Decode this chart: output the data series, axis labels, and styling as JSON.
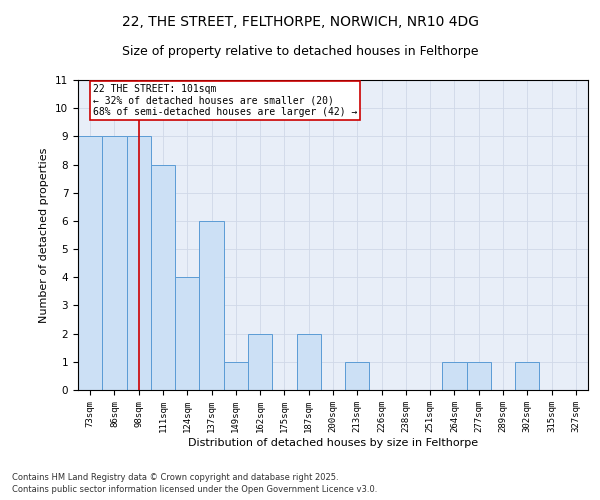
{
  "title": "22, THE STREET, FELTHORPE, NORWICH, NR10 4DG",
  "subtitle": "Size of property relative to detached houses in Felthorpe",
  "xlabel": "Distribution of detached houses by size in Felthorpe",
  "ylabel": "Number of detached properties",
  "categories": [
    "73sqm",
    "86sqm",
    "98sqm",
    "111sqm",
    "124sqm",
    "137sqm",
    "149sqm",
    "162sqm",
    "175sqm",
    "187sqm",
    "200sqm",
    "213sqm",
    "226sqm",
    "238sqm",
    "251sqm",
    "264sqm",
    "277sqm",
    "289sqm",
    "302sqm",
    "315sqm",
    "327sqm"
  ],
  "values": [
    9,
    9,
    9,
    8,
    4,
    6,
    1,
    2,
    0,
    2,
    0,
    1,
    0,
    0,
    0,
    1,
    1,
    0,
    1,
    0,
    0
  ],
  "bar_color": "#cce0f5",
  "bar_edge_color": "#5b9bd5",
  "red_line_index": 2,
  "red_line_color": "#cc0000",
  "annotation_text": "22 THE STREET: 101sqm\n← 32% of detached houses are smaller (20)\n68% of semi-detached houses are larger (42) →",
  "annotation_box_color": "#ffffff",
  "annotation_box_edge": "#cc0000",
  "ylim": [
    0,
    11
  ],
  "yticks": [
    0,
    1,
    2,
    3,
    4,
    5,
    6,
    7,
    8,
    9,
    10,
    11
  ],
  "grid_color": "#d0d8e8",
  "background_color": "#e8eef8",
  "footer_line1": "Contains HM Land Registry data © Crown copyright and database right 2025.",
  "footer_line2": "Contains public sector information licensed under the Open Government Licence v3.0.",
  "title_fontsize": 10,
  "subtitle_fontsize": 9,
  "annotation_fontsize": 7,
  "ylabel_fontsize": 8,
  "xlabel_fontsize": 8
}
